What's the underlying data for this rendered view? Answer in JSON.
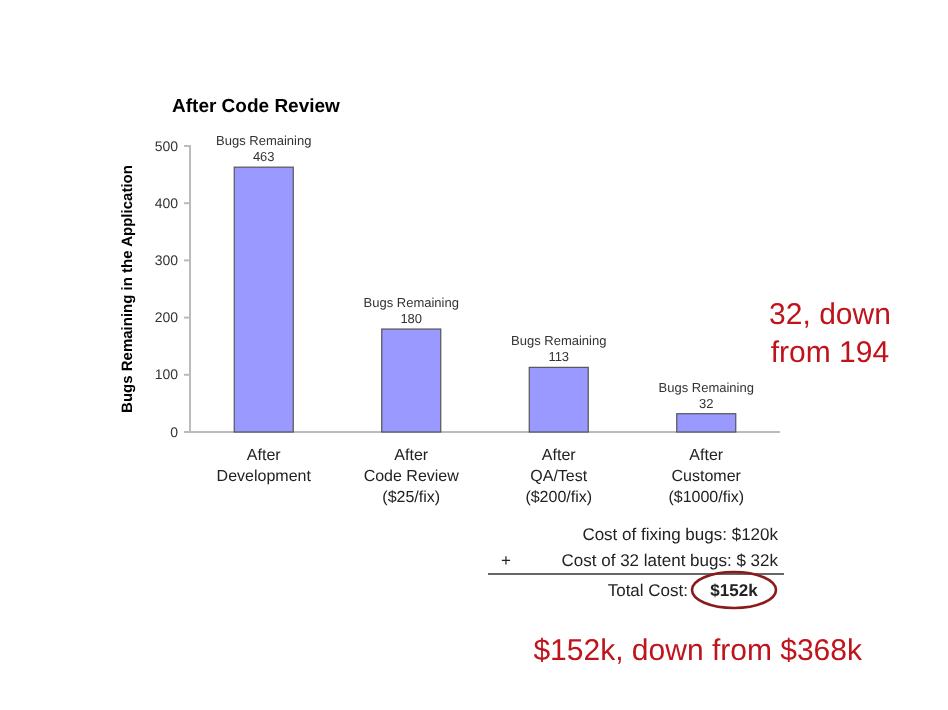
{
  "chart_data": {
    "type": "bar",
    "title": "After Code Review",
    "ylabel": "Bugs Remaining in the Application",
    "categories": [
      "After\nDevelopment",
      "After\nCode Review\n($25/fix)",
      "After\nQA/Test\n($200/fix)",
      "After\nCustomer\n($1000/fix)"
    ],
    "values": [
      463,
      180,
      113,
      32
    ],
    "value_labels": [
      "Bugs Remaining\n463",
      "Bugs Remaining\n180",
      "Bugs Remaining\n113",
      "Bugs Remaining\n32"
    ],
    "color": "#9999ff",
    "ylim": [
      0,
      500
    ],
    "yticks": [
      0,
      100,
      200,
      300,
      400,
      500
    ],
    "grid": false,
    "annotations": [
      "32, down\nfrom 194",
      "Cost of fixing bugs: $120k",
      "+",
      "Cost of 32 latent bugs: $  32k",
      "Total Cost:",
      "$152k",
      "$152k, down from $368k"
    ]
  }
}
